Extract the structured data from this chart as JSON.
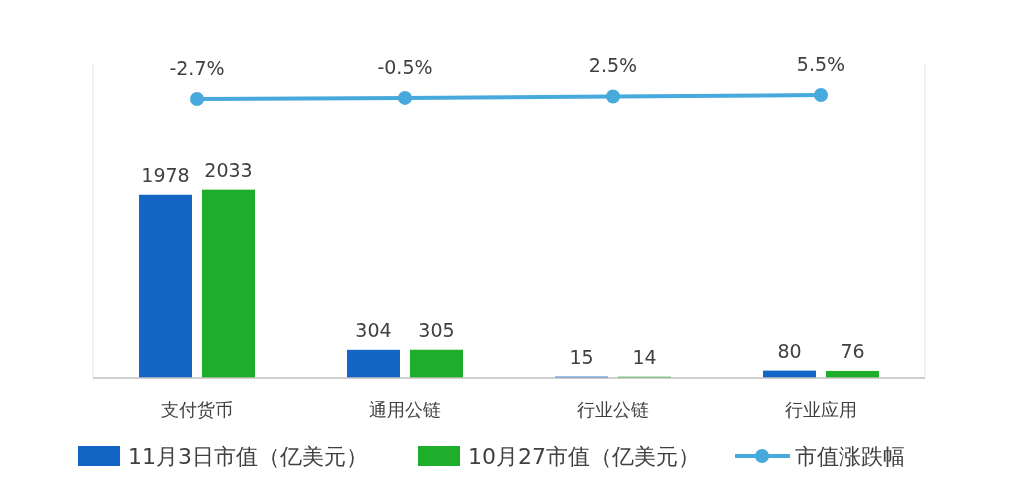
{
  "chart_data": {
    "type": "bar",
    "categories": [
      "支付货币",
      "通用公链",
      "行业公链",
      "行业应用"
    ],
    "series": [
      {
        "name": "11月3日市值（亿美元）",
        "color": "#1466c6",
        "values": [
          1978,
          304,
          15,
          80
        ]
      },
      {
        "name": "10月27市值（亿美元）",
        "color": "#1eae2c",
        "values": [
          2033,
          305,
          14,
          76
        ]
      },
      {
        "name": "市值涨跌幅",
        "type": "line",
        "axis": "y2",
        "color": "#47a9dc",
        "values": [
          -2.7,
          -0.5,
          2.5,
          5.5
        ],
        "value_labels": [
          "-2.7%",
          "-0.5%",
          "2.5%",
          "5.5%"
        ]
      }
    ],
    "ylim": [
      0,
      3400
    ],
    "y2lim": [
      -574,
      71
    ],
    "tick_labels": "x",
    "data_labels": true,
    "legend": "bottom",
    "marker": "circle",
    "grid": false
  }
}
